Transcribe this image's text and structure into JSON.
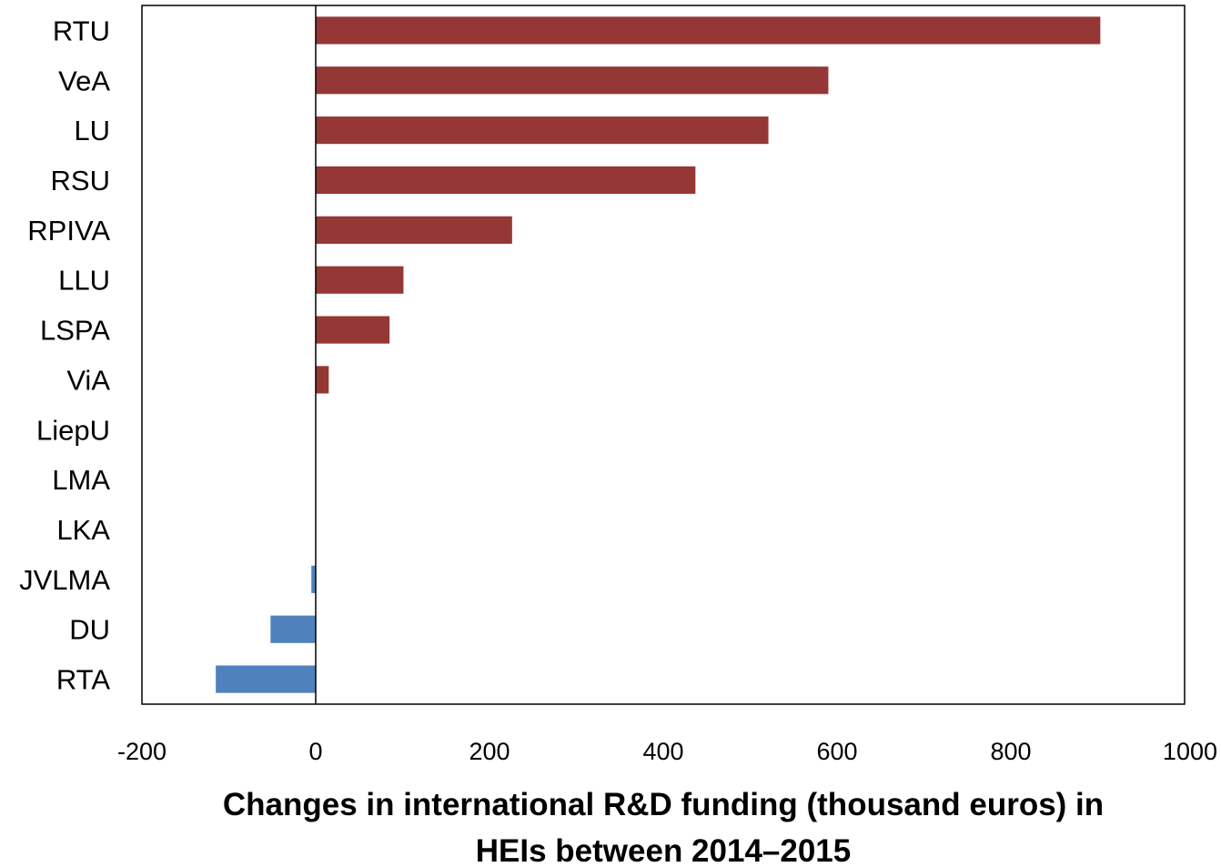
{
  "chart_data": {
    "type": "bar",
    "orientation": "horizontal",
    "categories": [
      "RTU",
      "VeA",
      "LU",
      "RSU",
      "RPIVA",
      "LLU",
      "LSPA",
      "ViA",
      "LiepU",
      "LMA",
      "LKA",
      "JVLMA",
      "DU",
      "RTA"
    ],
    "values": [
      903,
      590,
      521,
      437,
      226,
      101,
      85,
      15,
      0,
      0,
      0,
      -5,
      -52,
      -115
    ],
    "xlim": [
      -200,
      1000
    ],
    "xticks": [
      "-200",
      "0",
      "200",
      "400",
      "600",
      "800",
      "1000"
    ],
    "xlabel_lines": [
      "Changes in international R&D funding (thousand euros) in",
      "HEIs between 2014–2015"
    ],
    "ylabel": "",
    "grid": false,
    "legend": "none",
    "colors": {
      "positive": "#953735",
      "negative": "#4f81bd",
      "axis": "#000000"
    }
  }
}
